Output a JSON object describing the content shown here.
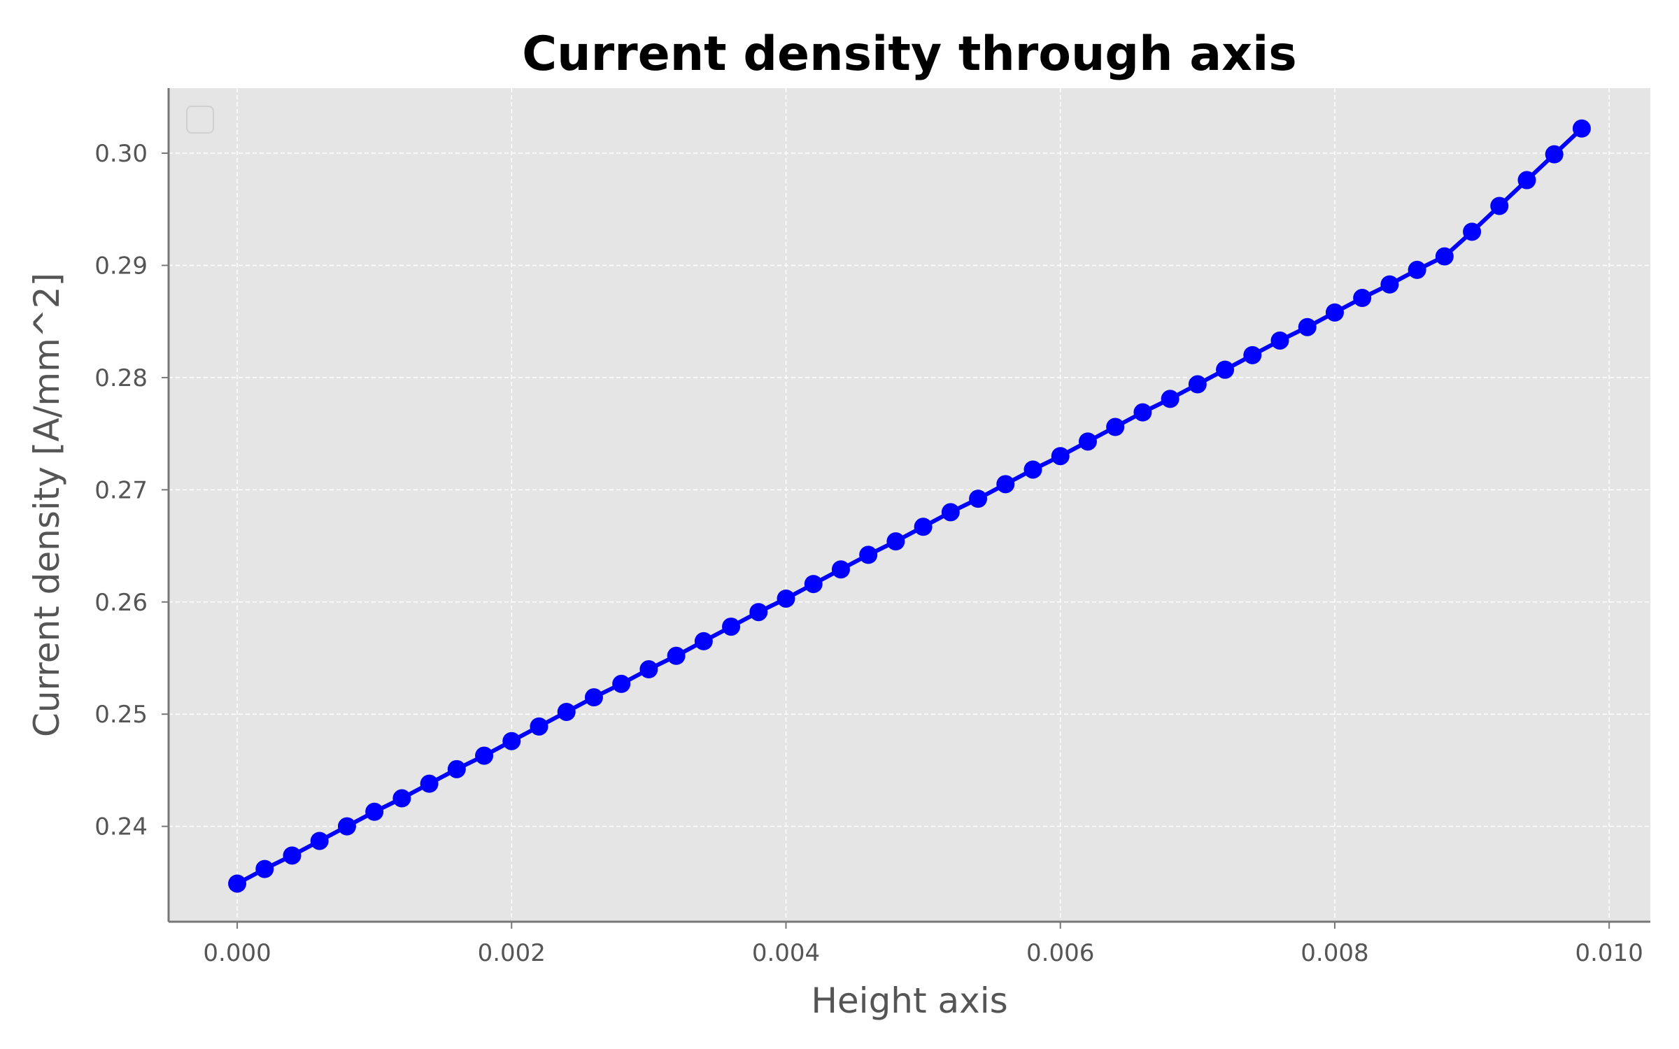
{
  "chart_data": {
    "type": "line",
    "title": "Current density through axis",
    "xlabel": "Height axis",
    "ylabel": "Current density [A/mm^2]",
    "xlim": [
      -0.0005,
      0.0103
    ],
    "ylim": [
      0.2315,
      0.3058
    ],
    "xticks": [
      0.0,
      0.002,
      0.004,
      0.006,
      0.008,
      0.01
    ],
    "xtick_labels": [
      "0.000",
      "0.002",
      "0.004",
      "0.006",
      "0.008",
      "0.010"
    ],
    "yticks": [
      0.24,
      0.25,
      0.26,
      0.27,
      0.28,
      0.29,
      0.3
    ],
    "ytick_labels": [
      "0.24",
      "0.25",
      "0.26",
      "0.27",
      "0.28",
      "0.29",
      "0.30"
    ],
    "grid": true,
    "legend": "top-left (empty)",
    "colors": {
      "series": "#0000ff",
      "axes_bg": "#e5e5e5",
      "grid": "#ffffff",
      "spine": "#777777"
    },
    "series": [
      {
        "marker": "circle",
        "x": [
          0.0,
          0.0002,
          0.0004,
          0.0006,
          0.0008,
          0.001,
          0.0012,
          0.0014,
          0.0016,
          0.0018,
          0.002,
          0.0022,
          0.0024,
          0.0026,
          0.0028,
          0.003,
          0.0032,
          0.0034,
          0.0036,
          0.0038,
          0.004,
          0.0042,
          0.0044,
          0.0046,
          0.0048,
          0.005,
          0.0052,
          0.0054,
          0.0056,
          0.0058,
          0.006,
          0.0062,
          0.0064,
          0.0066,
          0.0068,
          0.007,
          0.0072,
          0.0074,
          0.0076,
          0.0078,
          0.008,
          0.0082,
          0.0084,
          0.0086,
          0.0088,
          0.009,
          0.0092,
          0.0094,
          0.0096,
          0.0098
        ],
        "y": [
          0.2349,
          0.2362,
          0.2374,
          0.2387,
          0.24,
          0.2413,
          0.2425,
          0.2438,
          0.2451,
          0.2463,
          0.2476,
          0.2489,
          0.2502,
          0.2515,
          0.2527,
          0.254,
          0.2552,
          0.2565,
          0.2578,
          0.2591,
          0.2603,
          0.2616,
          0.2629,
          0.2642,
          0.2654,
          0.2667,
          0.268,
          0.2692,
          0.2705,
          0.2718,
          0.273,
          0.2743,
          0.2756,
          0.2769,
          0.2781,
          0.2794,
          0.2807,
          0.282,
          0.2833,
          0.2845,
          0.2858,
          0.2871,
          0.2883,
          0.2896,
          0.2908,
          0.293,
          0.2953,
          0.2976,
          0.2999,
          0.3022
        ]
      }
    ]
  }
}
